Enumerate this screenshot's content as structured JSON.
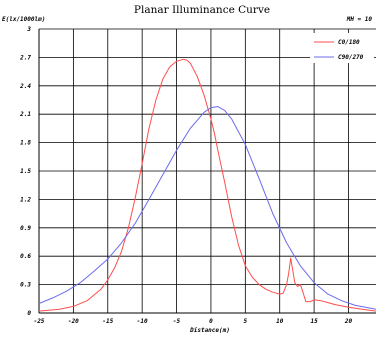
{
  "chart_data": {
    "type": "line",
    "title": "Planar Illuminance Curve",
    "annotation": "MH = 10",
    "ylabel": "E(lx/1000lm)",
    "xlabel": "Distance(m)",
    "xlim": [
      -25,
      24
    ],
    "ylim": [
      0,
      3
    ],
    "x_ticks": [
      -25,
      -20,
      -15,
      -10,
      -5,
      0,
      5,
      10,
      15,
      20
    ],
    "y_ticks": [
      0,
      0.3,
      0.6,
      0.9,
      1.2,
      1.5,
      1.8,
      2.1,
      2.4,
      2.7,
      3
    ],
    "x_tick_labels": [
      "-25",
      "-20",
      "-15",
      "-10",
      "-5",
      "0",
      "5",
      "10",
      "15",
      "20"
    ],
    "y_tick_labels": [
      "0",
      "0.3",
      "0.6",
      "0.9",
      "1.2",
      "1.5",
      "1.8",
      "2.1",
      "2.4",
      "2.7",
      "3"
    ],
    "grid": true,
    "legend_position": "top-right",
    "series": [
      {
        "name": "C0/180",
        "color": "#ff4d4d",
        "points": [
          [
            -25,
            0.02
          ],
          [
            -22,
            0.04
          ],
          [
            -20,
            0.07
          ],
          [
            -18,
            0.13
          ],
          [
            -16,
            0.25
          ],
          [
            -15,
            0.35
          ],
          [
            -14,
            0.48
          ],
          [
            -13,
            0.65
          ],
          [
            -12,
            0.9
          ],
          [
            -11,
            1.22
          ],
          [
            -10,
            1.58
          ],
          [
            -9,
            1.95
          ],
          [
            -8,
            2.25
          ],
          [
            -7,
            2.47
          ],
          [
            -6,
            2.6
          ],
          [
            -5,
            2.66
          ],
          [
            -4,
            2.68
          ],
          [
            -3.5,
            2.67
          ],
          [
            -3,
            2.64
          ],
          [
            -2,
            2.5
          ],
          [
            -1,
            2.3
          ],
          [
            0,
            2.05
          ],
          [
            0.5,
            1.9
          ],
          [
            1,
            1.72
          ],
          [
            2,
            1.38
          ],
          [
            3,
            1.02
          ],
          [
            4,
            0.72
          ],
          [
            5,
            0.5
          ],
          [
            6,
            0.38
          ],
          [
            7,
            0.3
          ],
          [
            8,
            0.25
          ],
          [
            9,
            0.22
          ],
          [
            10,
            0.2
          ],
          [
            10.5,
            0.21
          ],
          [
            11,
            0.3
          ],
          [
            11.3,
            0.42
          ],
          [
            11.6,
            0.58
          ],
          [
            11.9,
            0.45
          ],
          [
            12.2,
            0.32
          ],
          [
            12.6,
            0.28
          ],
          [
            13,
            0.3
          ],
          [
            13.3,
            0.24
          ],
          [
            13.8,
            0.12
          ],
          [
            14.5,
            0.12
          ],
          [
            15,
            0.14
          ],
          [
            16,
            0.13
          ],
          [
            17,
            0.11
          ],
          [
            18,
            0.09
          ],
          [
            20,
            0.06
          ],
          [
            22,
            0.04
          ],
          [
            24,
            0.02
          ]
        ]
      },
      {
        "name": "C90/270",
        "color": "#6b6bef",
        "points": [
          [
            -25,
            0.1
          ],
          [
            -23,
            0.16
          ],
          [
            -21,
            0.23
          ],
          [
            -19,
            0.32
          ],
          [
            -17,
            0.44
          ],
          [
            -15,
            0.57
          ],
          [
            -13,
            0.74
          ],
          [
            -11,
            0.95
          ],
          [
            -9,
            1.2
          ],
          [
            -7,
            1.46
          ],
          [
            -5,
            1.72
          ],
          [
            -3,
            1.95
          ],
          [
            -1,
            2.12
          ],
          [
            0,
            2.17
          ],
          [
            1,
            2.18
          ],
          [
            2,
            2.14
          ],
          [
            3,
            2.05
          ],
          [
            5,
            1.78
          ],
          [
            7,
            1.42
          ],
          [
            9,
            1.05
          ],
          [
            11,
            0.74
          ],
          [
            13,
            0.5
          ],
          [
            15,
            0.32
          ],
          [
            17,
            0.2
          ],
          [
            19,
            0.13
          ],
          [
            21,
            0.08
          ],
          [
            24,
            0.04
          ]
        ]
      }
    ]
  }
}
